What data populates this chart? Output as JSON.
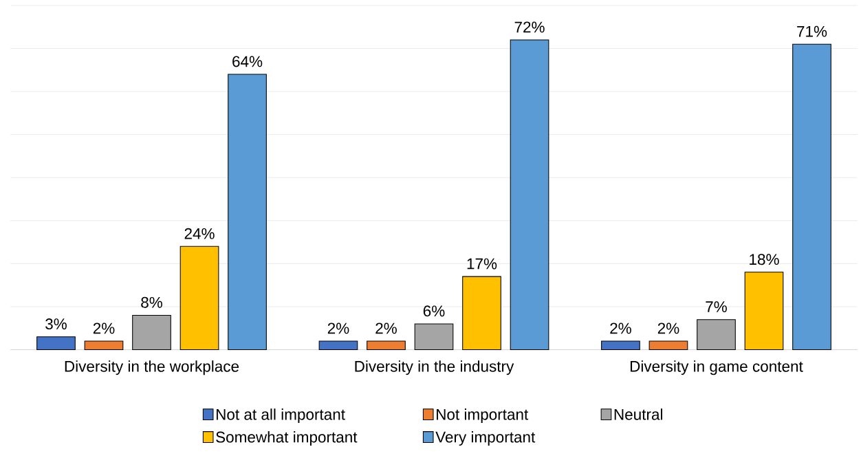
{
  "chart_data": {
    "type": "bar",
    "categories": [
      "Diversity in the workplace",
      "Diversity in the industry",
      "Diversity in game content"
    ],
    "series": [
      {
        "name": "Not at all important",
        "color": "#4472c4",
        "values": [
          3,
          2,
          2
        ],
        "value_labels": [
          "3%",
          "2%",
          "2%"
        ]
      },
      {
        "name": "Not important",
        "color": "#ed7d31",
        "values": [
          2,
          2,
          2
        ],
        "value_labels": [
          "2%",
          "2%",
          "2%"
        ]
      },
      {
        "name": "Neutral",
        "color": "#a5a5a5",
        "values": [
          8,
          6,
          7
        ],
        "value_labels": [
          "8%",
          "6%",
          "7%"
        ]
      },
      {
        "name": "Somewhat important",
        "color": "#ffc000",
        "values": [
          24,
          17,
          18
        ],
        "value_labels": [
          "24%",
          "17%",
          "18%"
        ]
      },
      {
        "name": "Very important",
        "color": "#5b9bd5",
        "values": [
          64,
          72,
          71
        ],
        "value_labels": [
          "64%",
          "72%",
          "71%"
        ]
      }
    ],
    "ylim": [
      0,
      80
    ],
    "yticks": [
      {
        "value": 0,
        "label": null
      },
      {
        "value": 10,
        "label": null
      },
      {
        "value": 20,
        "label": null
      },
      {
        "value": 30,
        "label": null
      },
      {
        "value": 40,
        "label": null
      },
      {
        "value": 50,
        "label": null
      },
      {
        "value": 60,
        "label": null
      },
      {
        "value": 70,
        "label": null
      },
      {
        "value": 80,
        "label": null
      }
    ],
    "tick_labels": "x",
    "grid": "y",
    "legend": "bottom"
  }
}
